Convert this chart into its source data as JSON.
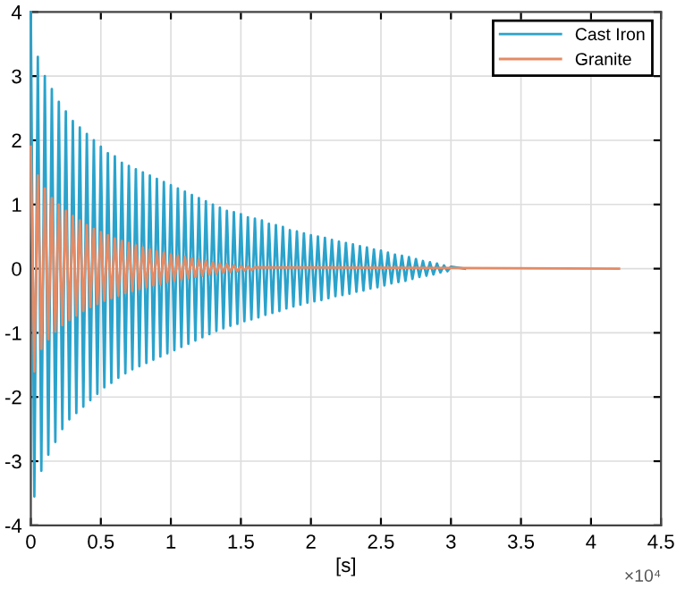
{
  "chart_data": {
    "type": "line",
    "xlabel": "[s]",
    "annotations": [
      "×10⁴"
    ],
    "xlim": [
      0,
      4.5
    ],
    "ylim": [
      -4,
      4
    ],
    "xticks": [
      0,
      0.5,
      1,
      1.5,
      2,
      2.5,
      3,
      3.5,
      4,
      4.5
    ],
    "yticks": [
      -4,
      -3,
      -2,
      -1,
      0,
      1,
      2,
      3,
      4
    ],
    "grid": true,
    "legend": "top right",
    "series": [
      {
        "name": "Cast Iron",
        "color": "#2aa3cc",
        "x": [
          0,
          0.025,
          0.05,
          0.075,
          0.1,
          0.125,
          0.15,
          0.175,
          0.2,
          0.225,
          0.25,
          0.275,
          0.3,
          0.325,
          0.35,
          0.375,
          0.4,
          0.425,
          0.45,
          0.475,
          0.5,
          0.525,
          0.55,
          0.575,
          0.6,
          0.625,
          0.65,
          0.675,
          0.7,
          0.725,
          0.75,
          0.775,
          0.8,
          0.825,
          0.85,
          0.875,
          0.9,
          0.925,
          0.95,
          0.975,
          1.0,
          1.025,
          1.05,
          1.075,
          1.1,
          1.125,
          1.15,
          1.175,
          1.2,
          1.225,
          1.25,
          1.275,
          1.3,
          1.325,
          1.35,
          1.375,
          1.4,
          1.425,
          1.45,
          1.475,
          1.5,
          1.525,
          1.55,
          1.575,
          1.6,
          1.625,
          1.65,
          1.675,
          1.7,
          1.725,
          1.75,
          1.775,
          1.8,
          1.825,
          1.85,
          1.875,
          1.9,
          1.925,
          1.95,
          1.975,
          2.0,
          2.025,
          2.05,
          2.075,
          2.1,
          2.125,
          2.15,
          2.175,
          2.2,
          2.225,
          2.25,
          2.275,
          2.3,
          2.325,
          2.35,
          2.375,
          2.4,
          2.425,
          2.45,
          2.475,
          2.5,
          2.525,
          2.55,
          2.575,
          2.6,
          2.625,
          2.65,
          2.675,
          2.7,
          2.725,
          2.75,
          2.775,
          2.8,
          2.825,
          2.85,
          2.875,
          2.9,
          2.925,
          2.95,
          2.975,
          3.0,
          3.1
        ],
        "values": [
          4.0,
          -3.55,
          3.3,
          -3.15,
          3.0,
          -2.9,
          2.8,
          -2.7,
          2.6,
          -2.5,
          2.45,
          -2.35,
          2.3,
          -2.25,
          2.2,
          -2.15,
          2.1,
          -2.05,
          2.0,
          -1.95,
          1.9,
          -1.85,
          1.8,
          -1.78,
          1.75,
          -1.7,
          1.65,
          -1.63,
          1.6,
          -1.57,
          1.55,
          -1.52,
          1.5,
          -1.47,
          1.45,
          -1.42,
          1.4,
          -1.37,
          1.35,
          -1.32,
          1.3,
          -1.27,
          1.25,
          -1.22,
          1.2,
          -1.17,
          1.15,
          -1.12,
          1.1,
          -1.07,
          1.05,
          -1.02,
          1.0,
          -0.97,
          0.95,
          -0.93,
          0.9,
          -0.89,
          0.88,
          -0.86,
          0.85,
          -0.82,
          0.8,
          -0.79,
          0.78,
          -0.76,
          0.75,
          -0.72,
          0.7,
          -0.69,
          0.68,
          -0.66,
          0.65,
          -0.62,
          0.6,
          -0.59,
          0.58,
          -0.56,
          0.55,
          -0.53,
          0.52,
          -0.51,
          0.5,
          -0.49,
          0.48,
          -0.46,
          0.45,
          -0.43,
          0.42,
          -0.41,
          0.4,
          -0.39,
          0.38,
          -0.36,
          0.35,
          -0.34,
          0.33,
          -0.31,
          0.3,
          -0.29,
          0.28,
          -0.26,
          0.25,
          -0.23,
          0.22,
          -0.21,
          0.2,
          -0.19,
          0.18,
          -0.16,
          0.15,
          -0.13,
          0.12,
          -0.11,
          0.1,
          -0.09,
          0.08,
          -0.06,
          0.05,
          -0.04,
          0.03,
          0
        ]
      },
      {
        "name": "Granite",
        "color": "#e38b66",
        "x": [
          0,
          0.025,
          0.05,
          0.075,
          0.1,
          0.125,
          0.15,
          0.175,
          0.2,
          0.225,
          0.25,
          0.275,
          0.3,
          0.325,
          0.35,
          0.375,
          0.4,
          0.425,
          0.45,
          0.475,
          0.5,
          0.525,
          0.55,
          0.575,
          0.6,
          0.625,
          0.65,
          0.675,
          0.7,
          0.725,
          0.75,
          0.775,
          0.8,
          0.825,
          0.85,
          0.875,
          0.9,
          0.925,
          0.95,
          0.975,
          1.0,
          1.025,
          1.05,
          1.075,
          1.1,
          1.125,
          1.15,
          1.175,
          1.2,
          1.225,
          1.25,
          1.275,
          1.3,
          1.325,
          1.35,
          1.375,
          1.4,
          1.425,
          1.45,
          1.475,
          1.5,
          1.525,
          1.55,
          1.575,
          1.6,
          4.2
        ],
        "values": [
          1.9,
          -1.6,
          1.45,
          -1.25,
          1.25,
          -1.1,
          1.1,
          -0.98,
          1.0,
          -0.88,
          0.9,
          -0.8,
          0.82,
          -0.73,
          0.75,
          -0.66,
          0.68,
          -0.6,
          0.62,
          -0.55,
          0.57,
          -0.5,
          0.52,
          -0.46,
          0.47,
          -0.42,
          0.43,
          -0.38,
          0.4,
          -0.35,
          0.36,
          -0.32,
          0.33,
          -0.29,
          0.3,
          -0.26,
          0.27,
          -0.24,
          0.25,
          -0.21,
          0.22,
          -0.19,
          0.2,
          -0.17,
          0.18,
          -0.15,
          0.16,
          -0.13,
          0.14,
          -0.11,
          0.12,
          -0.09,
          0.1,
          -0.08,
          0.08,
          -0.06,
          0.07,
          -0.05,
          0.05,
          -0.04,
          0.04,
          -0.03,
          0.03,
          -0.02,
          0.02,
          0
        ]
      }
    ]
  }
}
